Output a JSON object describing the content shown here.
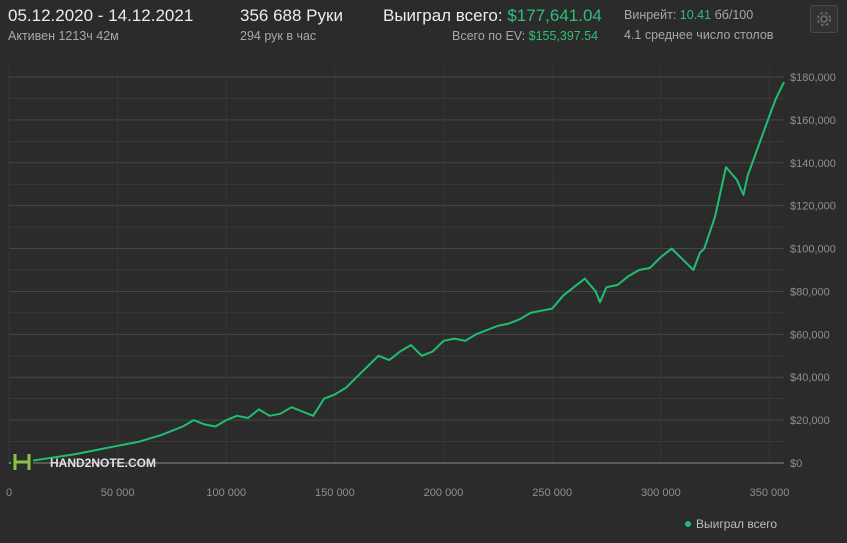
{
  "header": {
    "date_range": "05.12.2020 - 14.12.2021",
    "active_time": "Активен 1213ч 42м",
    "hands_count": "356 688 Руки",
    "hands_per_hour": "294 рук в час",
    "won_total_label": "Выиграл всего:",
    "won_total_value": "$177,641.04",
    "ev_total_label": "Всего по EV:",
    "ev_total_value": "$155,397.54",
    "winrate_label": "Винрейт:",
    "winrate_value": "10.41",
    "winrate_unit": "бб/100",
    "avg_tables": "4.1 среднее число столов"
  },
  "colors": {
    "line": "#1fbf72",
    "accent_green": "#2fbf7a",
    "background": "#2b2b2b",
    "grid": "#3f3f3f"
  },
  "logo": {
    "text": "HAND2NOTE.COM"
  },
  "chart_data": {
    "type": "line",
    "xlim": [
      0,
      356688
    ],
    "ylim": [
      0,
      180000
    ],
    "x_ticks": [
      0,
      50000,
      100000,
      150000,
      200000,
      250000,
      300000,
      350000
    ],
    "x_tick_labels": [
      "0",
      "50 000",
      "100 000",
      "150 000",
      "200 000",
      "250 000",
      "300 000",
      "350 000"
    ],
    "y_ticks": [
      0,
      20000,
      40000,
      60000,
      80000,
      100000,
      120000,
      140000,
      160000,
      180000
    ],
    "y_tick_labels": [
      "$0",
      "$20,000",
      "$40,000",
      "$60,000",
      "$80,000",
      "$100,000",
      "$120,000",
      "$140,000",
      "$160,000",
      "$180,000"
    ],
    "grid": true,
    "legend_position": "bottom-right",
    "series": [
      {
        "name": "Выиграл всего",
        "color": "#1fbf72",
        "points": [
          [
            0,
            0
          ],
          [
            10000,
            1000
          ],
          [
            20000,
            2500
          ],
          [
            30000,
            4000
          ],
          [
            40000,
            6000
          ],
          [
            50000,
            8000
          ],
          [
            60000,
            10000
          ],
          [
            70000,
            13000
          ],
          [
            80000,
            17000
          ],
          [
            85000,
            20000
          ],
          [
            90000,
            18000
          ],
          [
            95000,
            17000
          ],
          [
            100000,
            20000
          ],
          [
            105000,
            22000
          ],
          [
            110000,
            21000
          ],
          [
            115000,
            25000
          ],
          [
            120000,
            22000
          ],
          [
            125000,
            23000
          ],
          [
            130000,
            26000
          ],
          [
            135000,
            24000
          ],
          [
            140000,
            22000
          ],
          [
            145000,
            30000
          ],
          [
            150000,
            32000
          ],
          [
            155000,
            35000
          ],
          [
            160000,
            40000
          ],
          [
            165000,
            45000
          ],
          [
            170000,
            50000
          ],
          [
            175000,
            48000
          ],
          [
            180000,
            52000
          ],
          [
            185000,
            55000
          ],
          [
            190000,
            50000
          ],
          [
            195000,
            52000
          ],
          [
            200000,
            57000
          ],
          [
            205000,
            58000
          ],
          [
            210000,
            57000
          ],
          [
            215000,
            60000
          ],
          [
            220000,
            62000
          ],
          [
            225000,
            64000
          ],
          [
            230000,
            65000
          ],
          [
            235000,
            67000
          ],
          [
            240000,
            70000
          ],
          [
            245000,
            71000
          ],
          [
            250000,
            72000
          ],
          [
            255000,
            78000
          ],
          [
            260000,
            82000
          ],
          [
            265000,
            86000
          ],
          [
            270000,
            80000
          ],
          [
            272000,
            75000
          ],
          [
            275000,
            82000
          ],
          [
            280000,
            83000
          ],
          [
            285000,
            87000
          ],
          [
            290000,
            90000
          ],
          [
            295000,
            91000
          ],
          [
            300000,
            96000
          ],
          [
            305000,
            100000
          ],
          [
            310000,
            95000
          ],
          [
            315000,
            90000
          ],
          [
            318000,
            98000
          ],
          [
            320000,
            100000
          ],
          [
            325000,
            115000
          ],
          [
            330000,
            138000
          ],
          [
            335000,
            132000
          ],
          [
            338000,
            125000
          ],
          [
            340000,
            134000
          ],
          [
            345000,
            148000
          ],
          [
            350000,
            162000
          ],
          [
            353000,
            170000
          ],
          [
            356688,
            177641
          ]
        ]
      }
    ]
  }
}
